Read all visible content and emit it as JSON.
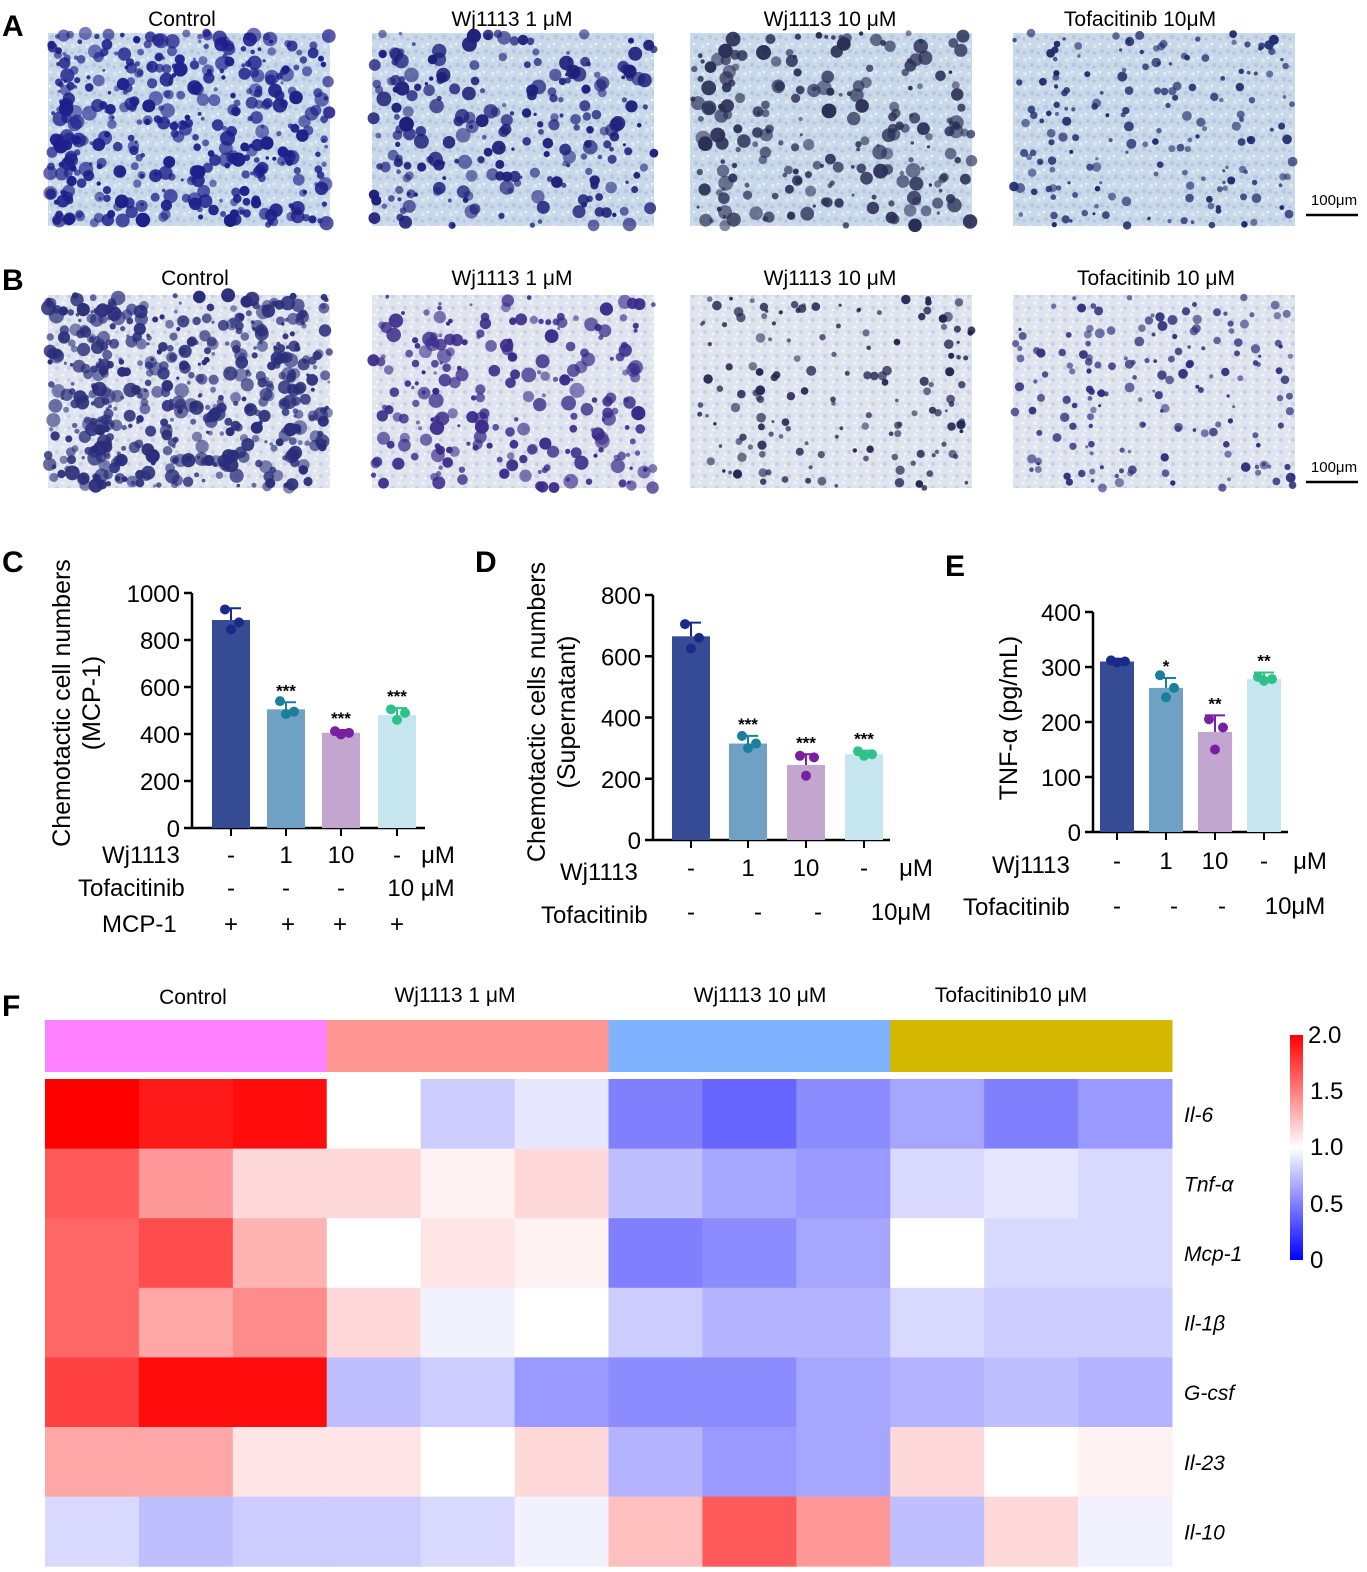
{
  "panels": {
    "A": {
      "letter": "A",
      "titles": [
        "Control",
        "Wj1113  1 μM",
        "Wj1113  10 μM",
        "Tofacitinib 10μM"
      ],
      "scale_bar": "100μm"
    },
    "B": {
      "letter": "B",
      "titles": [
        "Control",
        "Wj1113  1 μM",
        "Wj1113  10 μM",
        "Tofacitinib 10 μM"
      ],
      "scale_bar": "100μm"
    },
    "C": {
      "letter": "C",
      "ylabel_line1": "Chemotactic cell numbers",
      "ylabel_line2": "(MCP-1)",
      "yticks": [
        "0",
        "200",
        "400",
        "600",
        "800",
        "1000"
      ],
      "stars": [
        "***",
        "***",
        "***"
      ],
      "rows": [
        {
          "label": "Wj1113",
          "values": [
            "-",
            "1",
            "10",
            "-"
          ],
          "unit": "μM"
        },
        {
          "label": "Tofacitinib",
          "values": [
            "-",
            "-",
            "-",
            "10 μM"
          ],
          "unit": ""
        },
        {
          "label": "MCP-1",
          "values": [
            "+",
            "+",
            "+",
            "+"
          ],
          "unit": ""
        }
      ]
    },
    "D": {
      "letter": "D",
      "ylabel_line1": "Chemotactic cells numbers",
      "ylabel_line2": "(Supernatant)",
      "yticks": [
        "0",
        "200",
        "400",
        "600",
        "800"
      ],
      "stars": [
        "***",
        "***",
        "***"
      ],
      "rows": [
        {
          "label": "Wj1113",
          "values": [
            "-",
            "1",
            "10",
            "-"
          ],
          "unit": "μM"
        },
        {
          "label": "Tofacitinib",
          "values": [
            "-",
            "-",
            "-",
            "10μM"
          ],
          "unit": ""
        }
      ]
    },
    "E": {
      "letter": "E",
      "ylabel": "TNF-α (pg/mL)",
      "yticks": [
        "0",
        "100",
        "200",
        "300",
        "400"
      ],
      "stars": [
        "*",
        "**",
        "**"
      ],
      "rows": [
        {
          "label": "Wj1113",
          "values": [
            "-",
            "1",
            "10",
            "-"
          ],
          "unit": "μM"
        },
        {
          "label": "Tofacitinib",
          "values": [
            "-",
            "-",
            "-",
            "10μM"
          ],
          "unit": ""
        }
      ]
    },
    "F": {
      "letter": "F",
      "groups": [
        "Control",
        "Wj1113 1 μM",
        "Wj1113 10 μM",
        "Tofacitinib10 μM"
      ],
      "legend_ticks": [
        "2.0",
        "1.5",
        "1.0",
        "0.5",
        "0"
      ]
    }
  },
  "colors": {
    "bars": [
      "#354b94",
      "#6fa1c4",
      "#c3a6d0",
      "#c5e6ee"
    ],
    "dots": [
      "#1a2a8a",
      "#1a7f9a",
      "#7a1fa2",
      "#2fc18a"
    ],
    "group_bars": [
      "#ff80ff",
      "#ff9590",
      "#80b3ff",
      "#d4b800"
    ],
    "heat_low": "#0000ff",
    "heat_mid": "#ffffff",
    "heat_high": "#ff0000"
  },
  "chart_data": [
    {
      "panel": "C",
      "type": "bar",
      "categories": [
        "Control",
        "Wj1113 1 μM",
        "Wj1113 10 μM",
        "Tofacitinib 10 μM"
      ],
      "values": [
        885,
        505,
        405,
        480
      ],
      "errors": [
        50,
        30,
        12,
        30
      ],
      "points": [
        [
          930,
          875,
          845
        ],
        [
          540,
          495,
          485
        ],
        [
          412,
          405,
          398
        ],
        [
          505,
          490,
          460
        ]
      ],
      "ylim": [
        0,
        1000
      ],
      "significance": [
        "",
        "***",
        "***",
        "***"
      ]
    },
    {
      "panel": "D",
      "type": "bar",
      "categories": [
        "Control",
        "Wj1113 1 μM",
        "Wj1113 10 μM",
        "Tofacitinib 10 μM"
      ],
      "values": [
        665,
        315,
        245,
        280
      ],
      "errors": [
        45,
        25,
        35,
        12
      ],
      "points": [
        [
          705,
          660,
          625
        ],
        [
          340,
          315,
          300
        ],
        [
          275,
          270,
          210
        ],
        [
          290,
          280,
          275
        ]
      ],
      "ylim": [
        0,
        800
      ],
      "significance": [
        "",
        "***",
        "***",
        "***"
      ]
    },
    {
      "panel": "E",
      "type": "bar",
      "categories": [
        "Control",
        "Wj1113 1 μM",
        "Wj1113 10 μM",
        "Tofacitinib 10 μM"
      ],
      "values": [
        310,
        262,
        182,
        278
      ],
      "errors": [
        5,
        18,
        30,
        12
      ],
      "points": [
        [
          312,
          310,
          308
        ],
        [
          285,
          262,
          245
        ],
        [
          205,
          190,
          150
        ],
        [
          282,
          278,
          275
        ]
      ],
      "ylim": [
        0,
        400
      ],
      "significance": [
        "",
        "*",
        "**",
        "**"
      ]
    },
    {
      "panel": "F",
      "type": "heatmap",
      "rows": [
        "Il-6",
        "Tnf-α",
        "Mcp-1",
        "Il-1β",
        "G-csf",
        "Il-23",
        "Il-10"
      ],
      "column_groups": [
        "Control",
        "Control",
        "Control",
        "Wj1113 1 μM",
        "Wj1113 1 μM",
        "Wj1113 1 μM",
        "Wj1113 10 μM",
        "Wj1113 10 μM",
        "Wj1113 10 μM",
        "Tofacitinib10 μM",
        "Tofacitinib10 μM",
        "Tofacitinib10 μM"
      ],
      "values": [
        [
          2.0,
          1.9,
          1.95,
          1.0,
          0.8,
          0.9,
          0.5,
          0.4,
          0.55,
          0.65,
          0.5,
          0.6
        ],
        [
          1.65,
          1.4,
          1.15,
          1.15,
          1.05,
          1.15,
          0.75,
          0.65,
          0.6,
          0.85,
          0.9,
          0.85
        ],
        [
          1.6,
          1.7,
          1.3,
          1.0,
          1.1,
          1.05,
          0.5,
          0.55,
          0.65,
          1.0,
          0.85,
          0.85
        ],
        [
          1.6,
          1.35,
          1.45,
          1.15,
          0.95,
          1.0,
          0.8,
          0.7,
          0.7,
          0.85,
          0.8,
          0.8
        ],
        [
          1.75,
          1.95,
          1.95,
          0.75,
          0.8,
          0.6,
          0.55,
          0.55,
          0.65,
          0.7,
          0.75,
          0.7
        ],
        [
          1.35,
          1.35,
          1.1,
          1.1,
          1.0,
          1.15,
          0.7,
          0.6,
          0.65,
          1.15,
          1.0,
          1.05
        ],
        [
          0.85,
          0.75,
          0.8,
          0.8,
          0.85,
          0.95,
          1.25,
          1.65,
          1.4,
          0.75,
          1.15,
          0.95
        ]
      ],
      "scale": [
        0,
        2.0
      ]
    }
  ]
}
